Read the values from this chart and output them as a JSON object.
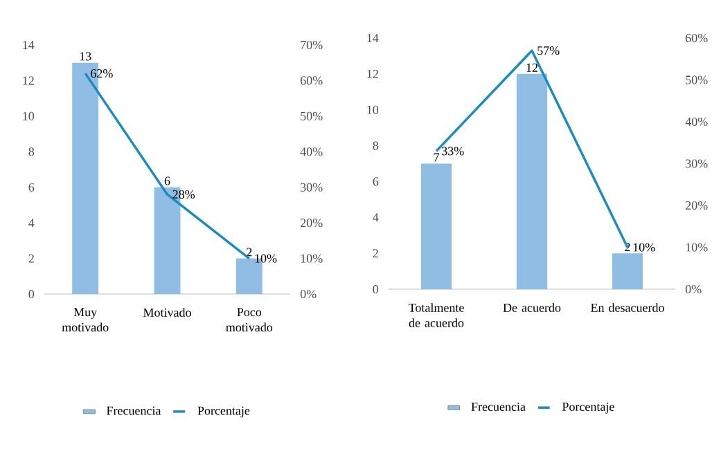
{
  "chart_data": [
    {
      "type": "bar",
      "categories": [
        "Muy motivado",
        "Motivado",
        "Poco motivado"
      ],
      "series": [
        {
          "name": "Frecuencia",
          "color": "#8fbde3",
          "values": [
            13,
            6,
            2
          ],
          "value_labels": [
            "13",
            "6",
            "2"
          ]
        },
        {
          "name": "Porcentaje",
          "type": "line",
          "axis": "y2",
          "color": "#1a8cc0",
          "values": [
            62,
            28,
            10
          ],
          "value_labels": [
            "62%",
            "28%",
            "10%"
          ]
        }
      ],
      "ylim": [
        0,
        14
      ],
      "yticks": [
        0,
        2,
        4,
        6,
        8,
        10,
        12,
        14
      ],
      "y2lim": [
        0,
        70
      ],
      "y2ticks": [
        {
          "value": 0,
          "label": "0%"
        },
        {
          "value": 10,
          "label": "10%"
        },
        {
          "value": 20,
          "label": "20%"
        },
        {
          "value": 30,
          "label": "30%"
        },
        {
          "value": 40,
          "label": "40%"
        },
        {
          "value": 50,
          "label": "50%"
        },
        {
          "value": 60,
          "label": "60%"
        },
        {
          "value": 70,
          "label": "70%"
        }
      ],
      "legend": "bottom",
      "grid": false
    },
    {
      "type": "bar",
      "categories": [
        "Totalmente de acuerdo",
        "De acuerdo",
        "En desacuerdo"
      ],
      "series": [
        {
          "name": "Frecuencia",
          "color": "#8fbde3",
          "values": [
            7,
            12,
            2
          ],
          "value_labels": [
            "7",
            "12",
            "2"
          ]
        },
        {
          "name": "Porcentaje",
          "type": "line",
          "axis": "y2",
          "color": "#1a8cc0",
          "values": [
            33,
            57,
            10
          ],
          "value_labels": [
            "33%",
            "57%",
            "10%"
          ]
        }
      ],
      "ylim": [
        0,
        14
      ],
      "yticks": [
        0,
        2,
        4,
        6,
        8,
        10,
        12,
        14
      ],
      "y2lim": [
        0,
        60
      ],
      "y2ticks": [
        {
          "value": 0,
          "label": "0%"
        },
        {
          "value": 10,
          "label": "10%"
        },
        {
          "value": 20,
          "label": "20%"
        },
        {
          "value": 30,
          "label": "30%"
        },
        {
          "value": 40,
          "label": "40%"
        },
        {
          "value": 50,
          "label": "50%"
        },
        {
          "value": 60,
          "label": "60%"
        }
      ],
      "legend": "bottom",
      "grid": false
    }
  ]
}
